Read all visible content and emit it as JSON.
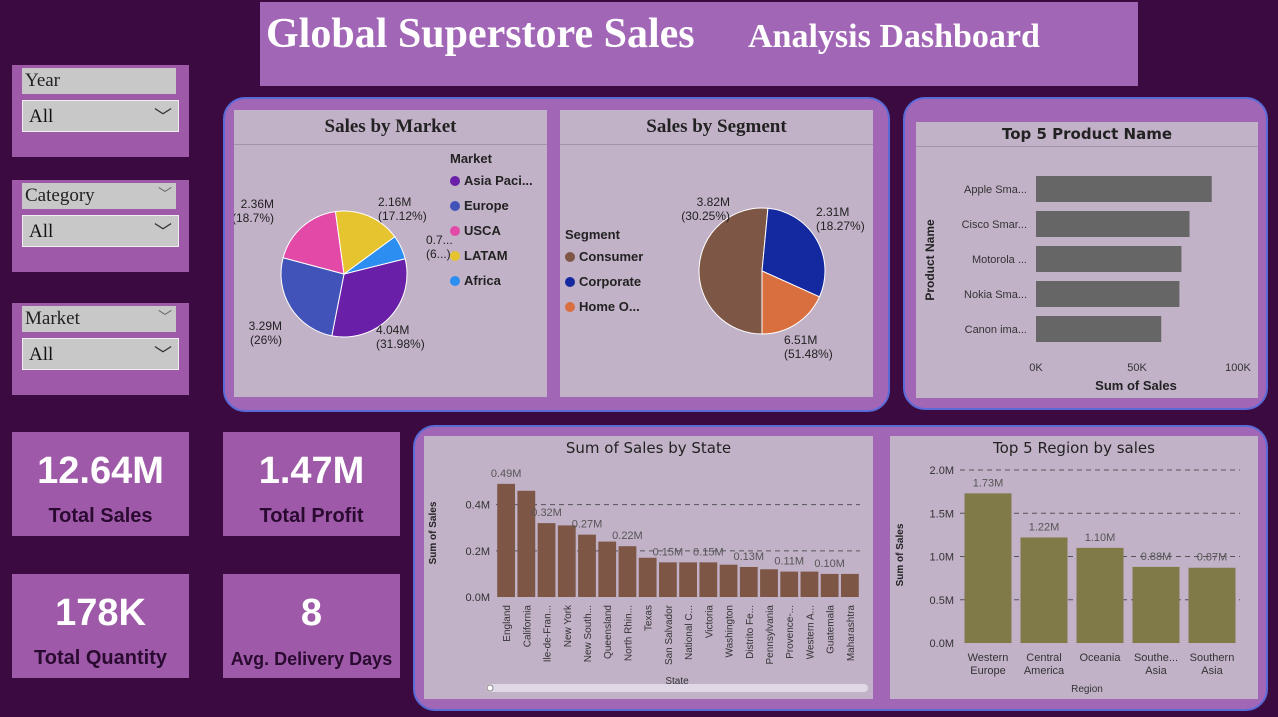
{
  "title": {
    "part1": "Global Superstore Sales",
    "part2": "Analysis Dashboard"
  },
  "slicers": [
    {
      "label": "Year",
      "value": "All"
    },
    {
      "label": "Category",
      "value": "All"
    },
    {
      "label": "Market",
      "value": "All"
    }
  ],
  "kpis": [
    {
      "value": "12.64M",
      "label": "Total Sales"
    },
    {
      "value": "1.47M",
      "label": "Total Profit"
    },
    {
      "value": "178K",
      "label": "Total Quantity"
    },
    {
      "value": "8",
      "label": "Avg. Delivery Days"
    }
  ],
  "chart_data": [
    {
      "type": "pie",
      "title": "Sales by Market",
      "legend_title": "Market",
      "legend_position": "right",
      "slices": [
        {
          "name": "Asia Paci...",
          "value": 4.04,
          "label": "4.04M",
          "pct": "(31.98%)",
          "color": "#6a1fa8"
        },
        {
          "name": "Europe",
          "value": 3.29,
          "label": "3.29M",
          "pct": "(26%)",
          "color": "#4153b8"
        },
        {
          "name": "USCA",
          "value": 2.36,
          "label": "2.36M",
          "pct": "(18.7%)",
          "color": "#e34aa8"
        },
        {
          "name": "LATAM",
          "value": 2.16,
          "label": "2.16M",
          "pct": "(17.12%)",
          "color": "#e6c430"
        },
        {
          "name": "Africa",
          "value": 0.78,
          "label": "0.7...",
          "pct": "(6...)",
          "color": "#2b8ef0"
        }
      ]
    },
    {
      "type": "pie",
      "title": "Sales by Segment",
      "legend_title": "Segment",
      "legend_position": "left",
      "slices": [
        {
          "name": "Consumer",
          "value": 6.51,
          "label": "6.51M",
          "pct": "(51.48%)",
          "color": "#7e5646"
        },
        {
          "name": "Corporate",
          "value": 3.82,
          "label": "3.82M",
          "pct": "(30.25%)",
          "color": "#1428a0"
        },
        {
          "name": "Home O...",
          "value": 2.31,
          "label": "2.31M",
          "pct": "(18.27%)",
          "color": "#d96e3e"
        }
      ]
    },
    {
      "type": "bar",
      "orientation": "horizontal",
      "title": "Top 5 Product Name",
      "xlabel": "Sum of Sales",
      "ylabel": "Product Name",
      "categories": [
        "Apple Sma...",
        "Cisco Smar...",
        "Motorola ...",
        "Nokia Sma...",
        "Canon ima..."
      ],
      "values": [
        87,
        76,
        72,
        71,
        62
      ],
      "x_ticks": [
        "0K",
        "50K",
        "100K"
      ],
      "xlim": [
        0,
        100
      ],
      "color": "#666666"
    },
    {
      "type": "bar",
      "title": "Sum of Sales by State",
      "xlabel": "State",
      "ylabel": "Sum of Sales",
      "categories": [
        "England",
        "California",
        "Ile-de-Fran...",
        "New York",
        "New South...",
        "Queensland",
        "North Rhin...",
        "Texas",
        "San Salvador",
        "National C...",
        "Victoria",
        "Washington",
        "Distrito Fe...",
        "Pennsylvania",
        "Provence-...",
        "Western A...",
        "Guatemala",
        "Maharashtra"
      ],
      "values": [
        0.49,
        0.46,
        0.32,
        0.31,
        0.27,
        0.24,
        0.22,
        0.17,
        0.15,
        0.15,
        0.15,
        0.14,
        0.13,
        0.12,
        0.11,
        0.11,
        0.1,
        0.1
      ],
      "data_labels": [
        "0.49M",
        "",
        "0.32M",
        "",
        "0.27M",
        "",
        "0.22M",
        "",
        "0.15M",
        "",
        "0.15M",
        "",
        "0.13M",
        "",
        "0.11M",
        "",
        "0.10M",
        ""
      ],
      "y_ticks": [
        "0.0M",
        "0.2M",
        "0.4M"
      ],
      "ylim": [
        0,
        0.55
      ],
      "grid": true,
      "color": "#7e5646"
    },
    {
      "type": "bar",
      "title": "Top 5 Region by sales",
      "xlabel": "Region",
      "ylabel": "Sum of Sales",
      "categories": [
        "Western Europe",
        "Central America",
        "Oceania",
        "Southe... Asia",
        "Southern Asia"
      ],
      "values": [
        1.73,
        1.22,
        1.1,
        0.88,
        0.87
      ],
      "data_labels": [
        "1.73M",
        "1.22M",
        "1.10M",
        "0.88M",
        "0.87M"
      ],
      "y_ticks": [
        "0.0M",
        "0.5M",
        "1.0M",
        "1.5M",
        "2.0M"
      ],
      "ylim": [
        0,
        2.0
      ],
      "grid": true,
      "color": "#807a48"
    }
  ]
}
